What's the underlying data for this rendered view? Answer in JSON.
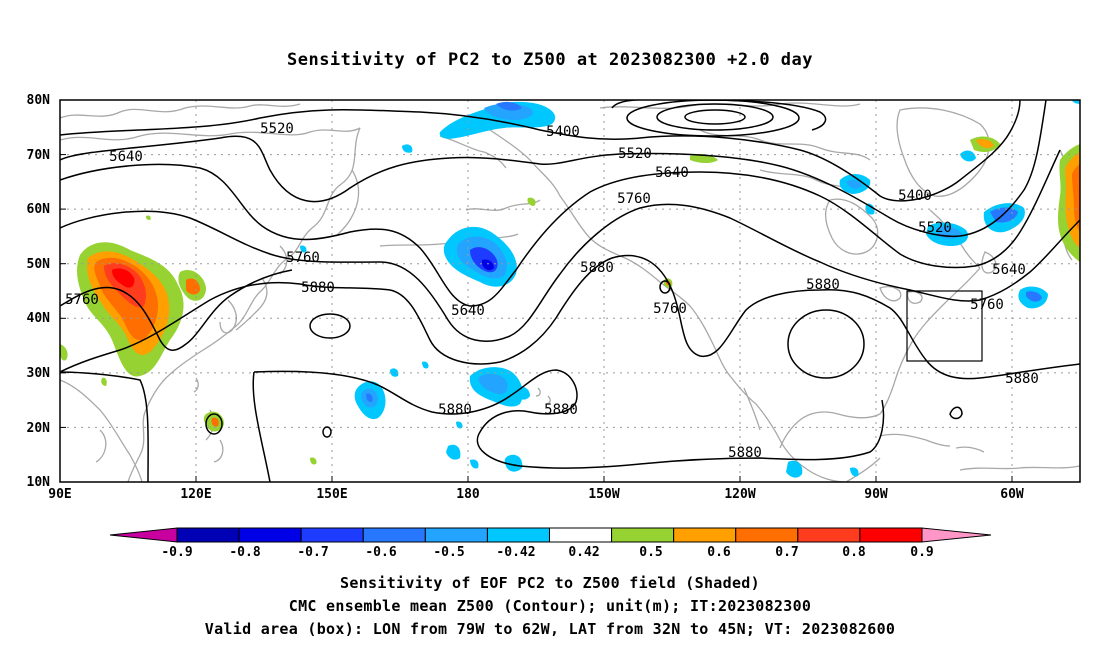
{
  "title": "Sensitivity of PC2 to Z500 at 2023082300 +2.0 day",
  "map": {
    "lat_labels": [
      "80N",
      "70N",
      "60N",
      "50N",
      "40N",
      "30N",
      "20N",
      "10N"
    ],
    "lon_labels": [
      "90E",
      "120E",
      "150E",
      "180",
      "150W",
      "120W",
      "90W",
      "60W"
    ],
    "contour_labels": [
      "5520",
      "5400",
      "5640",
      "5520",
      "5640",
      "5400",
      "5760",
      "5760",
      "5520",
      "5640",
      "5880",
      "5880",
      "5760",
      "5640",
      "5760",
      "5880",
      "5760",
      "5880",
      "5880",
      "5880",
      "5880"
    ],
    "valid_box": {
      "lon_from": "79W",
      "lon_to": "62W",
      "lat_from": "32N",
      "lat_to": "45N"
    }
  },
  "colorbar": {
    "labels": [
      "-0.9",
      "-0.8",
      "-0.7",
      "-0.6",
      "-0.5",
      "-0.42",
      "0.42",
      "0.5",
      "0.6",
      "0.7",
      "0.8",
      "0.9"
    ],
    "colors": [
      "#0000b4",
      "#0000e6",
      "#1e3cff",
      "#2878ff",
      "#23a5ff",
      "#00c8ff",
      "#ffffff",
      "#96d232",
      "#ffa000",
      "#ff6e00",
      "#ff3c1e",
      "#ff0000"
    ],
    "low_extend_color": "#c800a0",
    "high_extend_color": "#ff96c8"
  },
  "captions": {
    "line1": "Sensitivity of EOF PC2 to Z500 field (Shaded)",
    "line2": "CMC ensemble mean Z500 (Contour); unit(m); IT:2023082300",
    "line3": "Valid area (box): LON from 79W to 62W, LAT from 32N to 45N; VT: 2023082600"
  }
}
